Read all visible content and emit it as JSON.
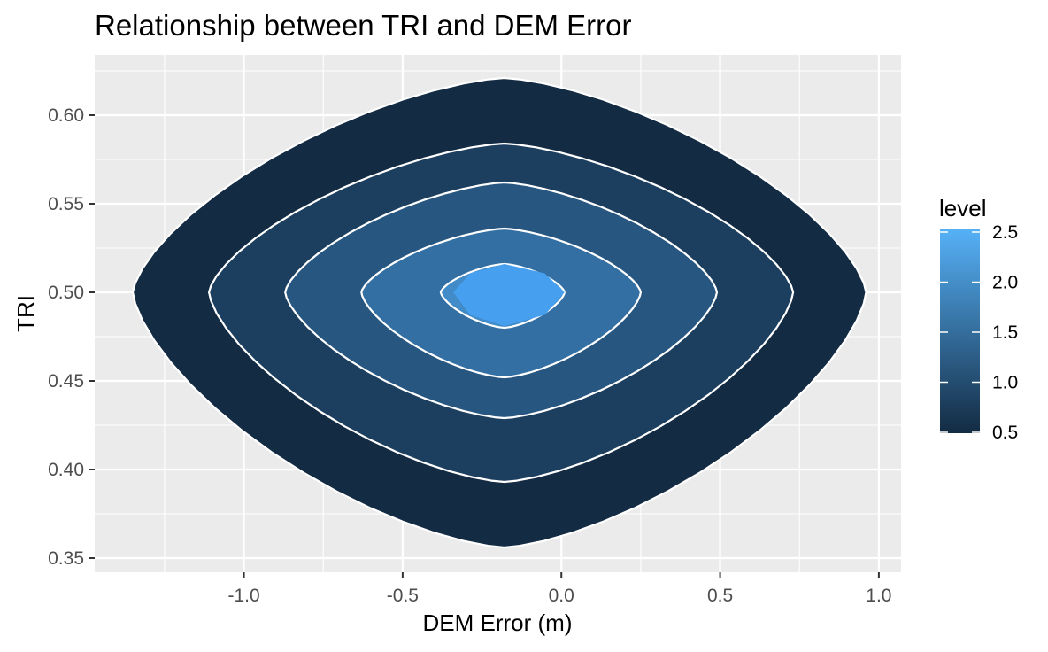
{
  "chart_data": {
    "type": "contour",
    "title": "Relationship between TRI and DEM Error",
    "xlabel": "DEM Error (m)",
    "ylabel": "TRI",
    "xlim": [
      -1.47,
      1.07
    ],
    "ylim": [
      0.342,
      0.634
    ],
    "x_ticks": [
      -1.0,
      -0.5,
      0.0,
      0.5,
      1.0
    ],
    "x_tick_labels": [
      "-1.0",
      "-0.5",
      "0.0",
      "0.5",
      "1.0"
    ],
    "y_ticks": [
      0.35,
      0.4,
      0.45,
      0.5,
      0.55,
      0.6
    ],
    "y_tick_labels": [
      "0.35",
      "0.40",
      "0.45",
      "0.50",
      "0.55",
      "0.60"
    ],
    "grid": true,
    "background": "#ebebeb",
    "legend": {
      "title": "level",
      "position": "right",
      "range": [
        0.5,
        2.5
      ],
      "ticks": [
        0.5,
        1.0,
        1.5,
        2.0,
        2.5
      ],
      "tick_labels": [
        "0.5",
        "1.0",
        "1.5",
        "2.0",
        "2.5"
      ],
      "color_low": "#132b43",
      "color_high": "#56b1f7"
    },
    "center": {
      "x": -0.18,
      "y": 0.5
    },
    "levels": [
      {
        "level": 0.5,
        "x_min": -1.35,
        "x_max": 0.96,
        "y_min": 0.356,
        "y_max": 0.621,
        "color": "#132b43"
      },
      {
        "level": 1.0,
        "x_min": -1.11,
        "x_max": 0.73,
        "y_min": 0.393,
        "y_max": 0.584,
        "color": "#1d3f5f"
      },
      {
        "level": 1.5,
        "x_min": -0.87,
        "x_max": 0.49,
        "y_min": 0.429,
        "y_max": 0.562,
        "color": "#275680"
      },
      {
        "level": 2.0,
        "x_min": -0.63,
        "x_max": 0.25,
        "y_min": 0.452,
        "y_max": 0.536,
        "color": "#336fa3"
      },
      {
        "level": 2.5,
        "x_min": -0.38,
        "x_max": 0.01,
        "y_min": 0.48,
        "y_max": 0.516,
        "color": "#418bc8"
      },
      {
        "level": 3.0,
        "x_min": -0.34,
        "x_max": 0.01,
        "y_min": 0.481,
        "y_max": 0.516,
        "color": "#47a0ef"
      }
    ]
  }
}
